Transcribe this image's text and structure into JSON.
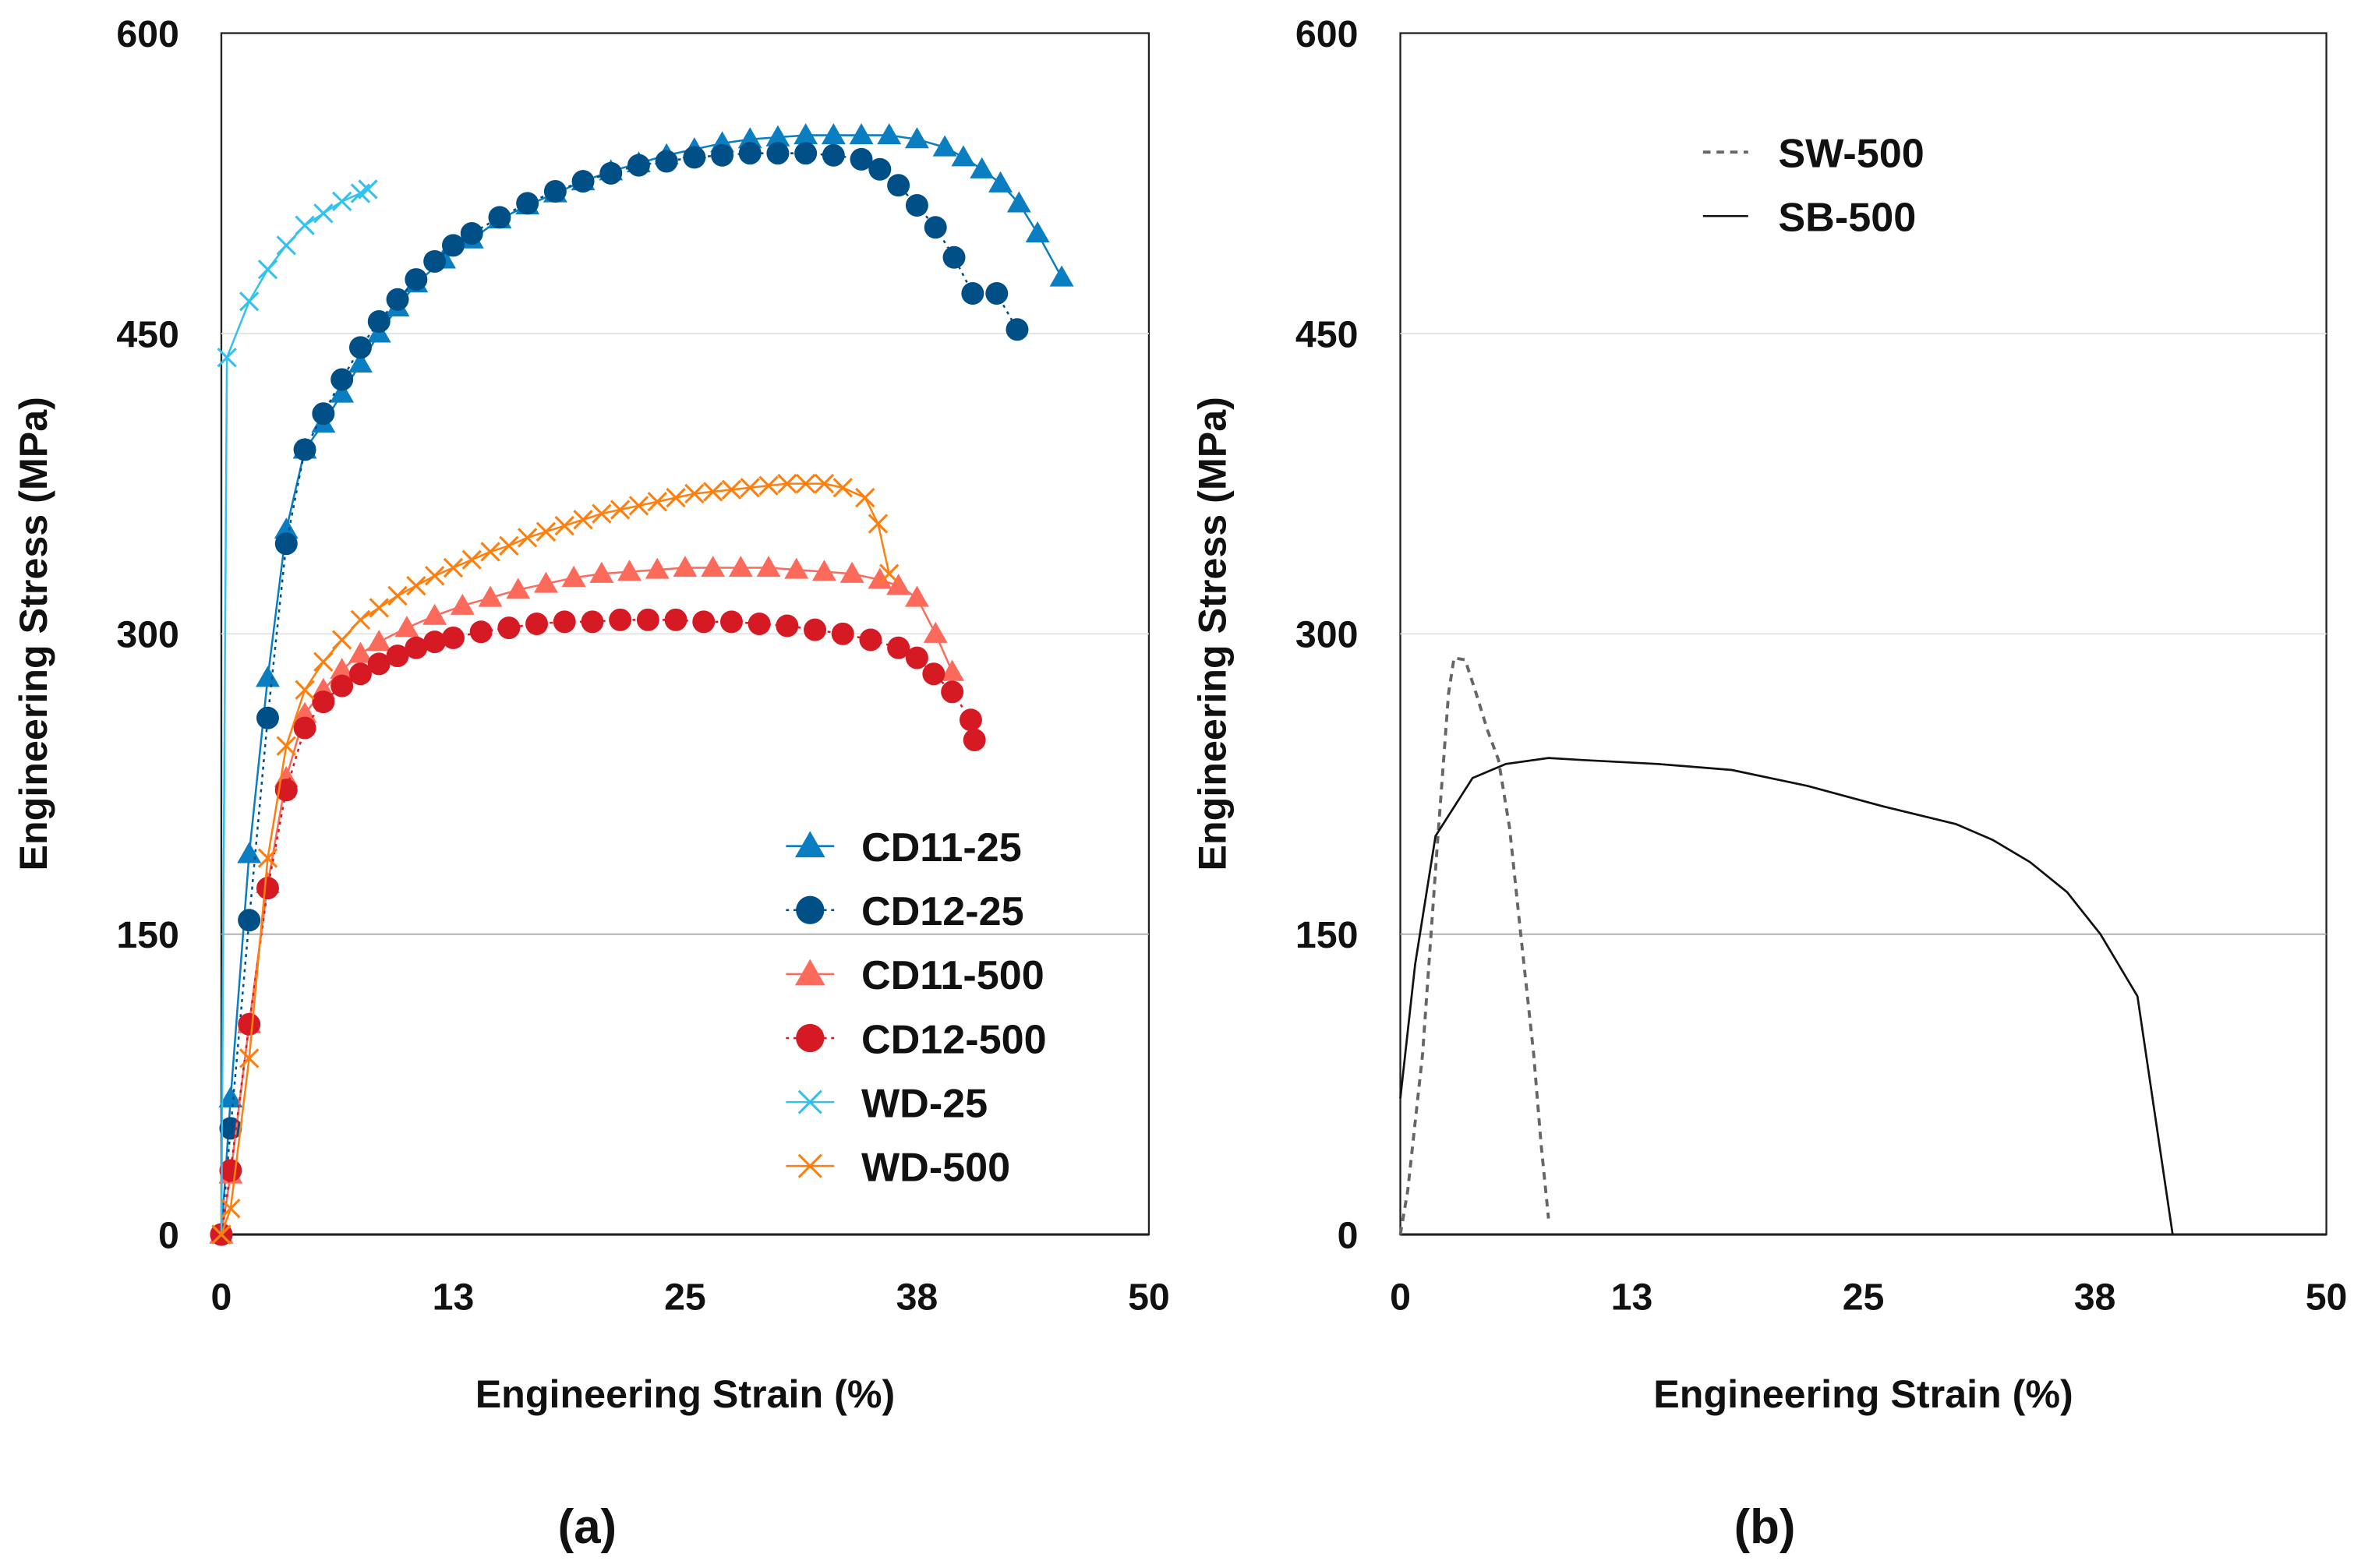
{
  "chart_data": [
    {
      "type": "line",
      "panel_label": "(a)",
      "xlabel": "Engineering Strain (%)",
      "ylabel": "Engineering Stress (MPa)",
      "xlim": [
        0,
        50
      ],
      "ylim": [
        0,
        600
      ],
      "xticks": [
        0,
        12.5,
        25,
        37.5,
        50
      ],
      "xtick_labels": [
        "0",
        "13",
        "25",
        "38",
        "50"
      ],
      "yticks": [
        0,
        150,
        300,
        450,
        600
      ],
      "ytick_labels": [
        "0",
        "150",
        "300",
        "450",
        "600"
      ],
      "grid": "horizontal",
      "legend": "bottom-right",
      "series": [
        {
          "name": "CD11-25",
          "color": "#0b7dc1",
          "marker": "triangle",
          "dash": "solid",
          "x": [
            0,
            0.5,
            1.5,
            2.5,
            3.5,
            4.5,
            5.5,
            6.5,
            7.5,
            8.5,
            9.5,
            10.5,
            12,
            13.5,
            15,
            16.5,
            18,
            19.5,
            21,
            22.5,
            24,
            25.5,
            27,
            28.5,
            30,
            31.5,
            33,
            34.5,
            36,
            37.5,
            39,
            40,
            41,
            42,
            43,
            44,
            45.3
          ],
          "y": [
            0,
            68,
            190,
            278,
            352,
            392,
            405,
            420,
            435,
            450,
            463,
            475,
            487,
            497,
            507,
            514,
            520,
            526,
            531,
            535,
            539,
            542,
            545,
            547,
            548,
            549,
            549,
            549,
            549,
            547,
            543,
            538,
            532,
            525,
            515,
            500,
            478
          ]
        },
        {
          "name": "CD12-25",
          "color": "#004f86",
          "marker": "circle",
          "dash": "dotted",
          "x": [
            0,
            0.5,
            1.5,
            2.5,
            3.5,
            4.5,
            5.5,
            6.5,
            7.5,
            8.5,
            9.5,
            10.5,
            11.5,
            12.5,
            13.5,
            15,
            16.5,
            18,
            19.5,
            21,
            22.5,
            24,
            25.5,
            27,
            28.5,
            30,
            31.5,
            33,
            34.5,
            35.5,
            36.5,
            37.5,
            38.5,
            39.5,
            40.5,
            41.8,
            42.9
          ],
          "y": [
            0,
            53,
            157,
            258,
            345,
            392,
            410,
            427,
            443,
            456,
            467,
            477,
            486,
            494,
            500,
            508,
            515,
            521,
            526,
            530,
            534,
            536,
            538,
            539,
            540,
            540,
            540,
            539,
            537,
            532,
            524,
            514,
            503,
            488,
            470,
            470,
            452
          ]
        },
        {
          "name": "CD11-500",
          "color": "#fb6a5a",
          "marker": "triangle",
          "dash": "solid",
          "x": [
            0,
            0.5,
            1.5,
            2.5,
            3.5,
            4.5,
            5.5,
            6.5,
            7.5,
            8.5,
            10,
            11.5,
            13,
            14.5,
            16,
            17.5,
            19,
            20.5,
            22,
            23.5,
            25,
            26.5,
            28,
            29.5,
            31,
            32.5,
            34,
            35.5,
            36.5,
            37.5,
            38.5,
            39.4
          ],
          "y": [
            0,
            30,
            105,
            175,
            228,
            260,
            272,
            282,
            290,
            296,
            303,
            309,
            314,
            318,
            322,
            325,
            328,
            330,
            331,
            332,
            333,
            333,
            333,
            333,
            332,
            331,
            330,
            327,
            324,
            318,
            300,
            281
          ]
        },
        {
          "name": "CD12-500",
          "color": "#d51a24",
          "marker": "circle",
          "dash": "dotted",
          "x": [
            0,
            0.5,
            1.5,
            2.5,
            3.5,
            4.5,
            5.5,
            6.5,
            7.5,
            8.5,
            9.5,
            10.5,
            11.5,
            12.5,
            14,
            15.5,
            17,
            18.5,
            20,
            21.5,
            23,
            24.5,
            26,
            27.5,
            29,
            30.5,
            32,
            33.5,
            35,
            36.5,
            37.5,
            38.4,
            39.4,
            40.4,
            40.6
          ],
          "y": [
            0,
            32,
            105,
            173,
            222,
            253,
            266,
            274,
            280,
            285,
            289,
            293,
            296,
            298,
            301,
            303,
            305,
            306,
            306,
            307,
            307,
            307,
            306,
            306,
            305,
            304,
            302,
            300,
            297,
            293,
            288,
            280,
            271,
            257,
            247
          ]
        },
        {
          "name": "WD-25",
          "color": "#33c1ee",
          "marker": "x",
          "dash": "solid",
          "x": [
            0,
            0.3,
            1.5,
            2.5,
            3.5,
            4.5,
            5.5,
            6.5,
            7.5,
            7.9
          ],
          "y": [
            0,
            438,
            466,
            482,
            494,
            504,
            510,
            516,
            520,
            522
          ]
        },
        {
          "name": "WD-500",
          "color": "#ff7f0e",
          "marker": "x",
          "dash": "solid",
          "x": [
            0,
            0.5,
            1.5,
            2.5,
            3.5,
            4.5,
            5.5,
            6.5,
            7.5,
            8.5,
            9.5,
            10.5,
            11.5,
            12.5,
            13.5,
            14.5,
            15.5,
            16.5,
            17.5,
            18.5,
            19.5,
            20.5,
            21.5,
            22.5,
            23.5,
            24.5,
            25.5,
            26.5,
            27.5,
            28.5,
            29.5,
            30.5,
            31.5,
            32.5,
            33.5,
            34.7,
            35.4,
            36
          ],
          "y": [
            0,
            13,
            88,
            188,
            244,
            272,
            286,
            297,
            307,
            313,
            319,
            324,
            329,
            333,
            337,
            341,
            344,
            348,
            351,
            354,
            357,
            360,
            362,
            364,
            366,
            368,
            370,
            371,
            372,
            373,
            374,
            375,
            375,
            375,
            373,
            368,
            355,
            330
          ]
        }
      ]
    },
    {
      "type": "line",
      "panel_label": "(b)",
      "xlabel": "Engineering Strain (%)",
      "ylabel": "Engineering Stress (MPa)",
      "xlim": [
        0,
        50
      ],
      "ylim": [
        0,
        600
      ],
      "xticks": [
        0,
        12.5,
        25,
        37.5,
        50
      ],
      "xtick_labels": [
        "0",
        "13",
        "25",
        "38",
        "50"
      ],
      "yticks": [
        0,
        150,
        300,
        450,
        600
      ],
      "ytick_labels": [
        "0",
        "150",
        "300",
        "450",
        "600"
      ],
      "grid": "horizontal",
      "legend": "top-center",
      "series": [
        {
          "name": "SW-500",
          "color": "#666666",
          "marker": "none",
          "dash": "dashed",
          "x": [
            0,
            0.4,
            1.2,
            2.0,
            2.6,
            2.9,
            3.5,
            4.1,
            4.7,
            5.3,
            5.9,
            6.5,
            7.2,
            7.6,
            8.0
          ],
          "y": [
            0,
            22,
            90,
            195,
            270,
            288,
            287,
            270,
            252,
            237,
            203,
            150,
            90,
            45,
            8
          ]
        },
        {
          "name": "SB-500",
          "color": "#111111",
          "marker": "none",
          "dash": "solid",
          "x": [
            0,
            0.8,
            1.9,
            3.9,
            5.7,
            8,
            9.8,
            13.9,
            17.9,
            22,
            26,
            30,
            32,
            34,
            36,
            37.8,
            39.8,
            41.7
          ],
          "y": [
            68,
            135,
            199,
            228,
            235,
            238,
            237,
            235,
            232,
            224,
            214,
            205,
            197,
            186,
            171,
            150,
            119,
            0
          ]
        }
      ]
    }
  ]
}
